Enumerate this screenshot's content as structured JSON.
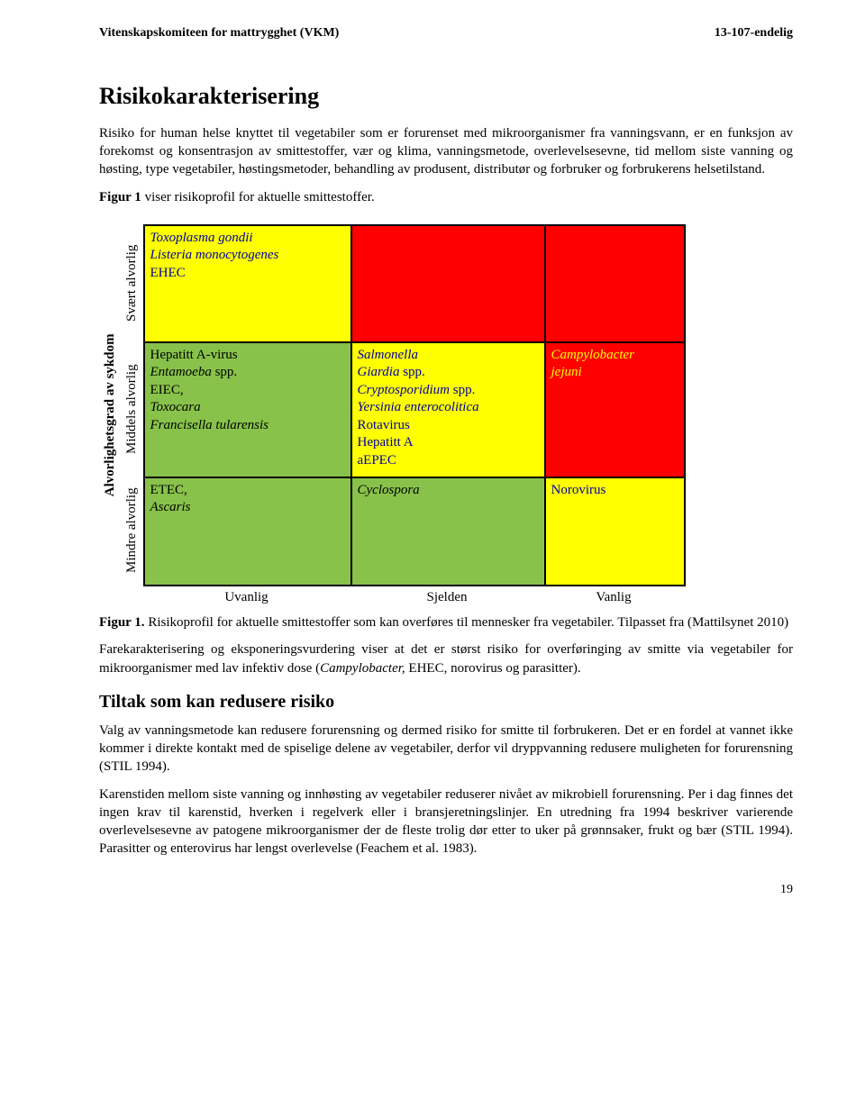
{
  "header": {
    "left": "Vitenskapskomiteen for mattrygghet (VKM)",
    "right": "13-107-endelig"
  },
  "title": "Risikokarakterisering",
  "intro_p1": "Risiko for human helse knyttet til vegetabiler som er forurenset med mikroorganismer fra vanningsvann, er en funksjon av forekomst og konsentrasjon av smittestoffer, vær og klima, vanningsmetode, overlevelsesevne, tid mellom siste vanning og høsting, type vegetabiler, høstingsmetoder, behandling av produsent, distributør og forbruker og forbrukerens helsetilstand.",
  "intro_p2a": "Figur 1",
  "intro_p2b": " viser risikoprofil for aktuelle smittestoffer.",
  "risk_table": {
    "y_axis_main": "Alvorlighetsgrad av sykdom",
    "y_labels": [
      "Svært alvorlig",
      "Middels alvorlig",
      "Mindre alvorlig"
    ],
    "x_labels": [
      "Uvanlig",
      "Sjelden",
      "Vanlig"
    ],
    "colors": {
      "green": "#88c24a",
      "yellow": "#ffff00",
      "red": "#ff0000"
    },
    "cells": [
      [
        {
          "bg": "yellow",
          "lines": [
            {
              "text": "Toxoplasma gondii",
              "italic": true,
              "color": "#0000a0"
            },
            {
              "text": "Listeria monocytogenes",
              "italic": true,
              "color": "#0000a0"
            },
            {
              "text": "EHEC",
              "italic": false,
              "color": "#0000a0"
            }
          ]
        },
        {
          "bg": "red",
          "lines": []
        },
        {
          "bg": "red",
          "lines": []
        }
      ],
      [
        {
          "bg": "green",
          "lines": [
            {
              "text": "Hepatitt A-virus",
              "italic": false,
              "color": "#000000"
            },
            {
              "text": "Entamoeba",
              "italic": true,
              "color": "#000000",
              "tail": " spp."
            },
            {
              "text": "EIEC,",
              "italic": false,
              "color": "#000000"
            },
            {
              "text": "Toxocara",
              "italic": true,
              "color": "#000000"
            },
            {
              "text": "Francisella tularensis",
              "italic": true,
              "color": "#000000"
            }
          ]
        },
        {
          "bg": "yellow",
          "lines": [
            {
              "text": "Salmonella",
              "italic": true,
              "color": "#0000a0"
            },
            {
              "text": "Giardia",
              "italic": true,
              "color": "#0000a0",
              "tail": " spp."
            },
            {
              "text": "Cryptosporidium",
              "italic": true,
              "color": "#0000a0",
              "tail": " spp."
            },
            {
              "text": "Yersinia enterocolitica",
              "italic": true,
              "color": "#0000a0"
            },
            {
              "text": "Rotavirus",
              "italic": false,
              "color": "#0000a0"
            },
            {
              "text": "Hepatitt A",
              "italic": false,
              "color": "#0000a0"
            },
            {
              "text": "aEPEC",
              "italic": false,
              "color": "#0000a0"
            }
          ]
        },
        {
          "bg": "red",
          "lines": [
            {
              "text": "Campylobacter",
              "italic": true,
              "color": "#ffff00"
            },
            {
              "text": "jejuni",
              "italic": true,
              "color": "#ffff00"
            }
          ]
        }
      ],
      [
        {
          "bg": "green",
          "lines": [
            {
              "text": "ETEC,",
              "italic": false,
              "color": "#000000"
            },
            {
              "text": "Ascaris",
              "italic": true,
              "color": "#000000"
            }
          ]
        },
        {
          "bg": "green",
          "lines": [
            {
              "text": "Cyclospora",
              "italic": true,
              "color": "#000000"
            }
          ]
        },
        {
          "bg": "yellow",
          "lines": [
            {
              "text": "Norovirus",
              "italic": false,
              "color": "#0000a0"
            }
          ]
        }
      ]
    ]
  },
  "fig_caption_a": "Figur 1.",
  "fig_caption_b": " Risikoprofil for aktuelle smittestoffer som kan overføres til mennesker fra vegetabiler. Tilpasset fra (Mattilsynet 2010)",
  "para2_a": "Farekarakterisering og eksponeringsvurdering viser at det er størst risiko for overføringing av smitte via vegetabiler for mikroorganismer med lav infektiv dose (",
  "para2_b": "Campylobacter,",
  "para2_c": " EHEC, norovirus og parasitter).",
  "h2": "Tiltak som kan redusere risiko",
  "p3": "Valg av vanningsmetode kan redusere forurensning og dermed risiko for smitte til forbrukeren. Det er en fordel at vannet ikke kommer i direkte kontakt med de spiselige delene av vegetabiler, derfor vil dryppvanning redusere muligheten for forurensning (STIL 1994).",
  "p4": "Karenstiden mellom siste vanning og innhøsting av vegetabiler reduserer nivået av mikrobiell forurensning. Per i dag finnes det ingen krav til karenstid, hverken i regelverk eller i bransjeretningslinjer. En utredning fra 1994 beskriver varierende overlevelsesevne av patogene mikroorganismer der de fleste trolig dør etter to uker på grønnsaker, frukt og bær (STIL 1994). Parasitter og enterovirus har lengst overlevelse (Feachem et al. 1983).",
  "page_num": "19"
}
